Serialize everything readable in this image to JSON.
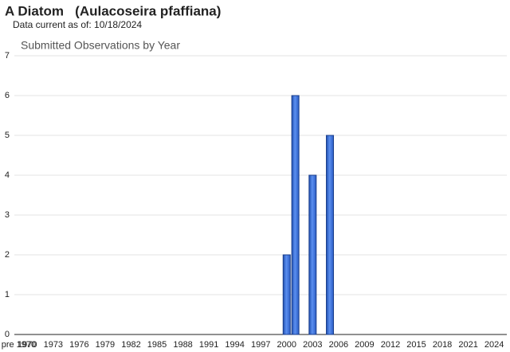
{
  "chart_data": {
    "type": "bar",
    "title": "A Diatom   (Aulacoseira pfaffiana)",
    "subtitle": "Data current as of: 10/18/2024",
    "chart_title": "Submitted Observations by Year",
    "categories": [
      "pre 1970",
      "1970",
      null,
      null,
      "1973",
      null,
      null,
      "1976",
      null,
      null,
      "1979",
      null,
      null,
      "1982",
      null,
      null,
      "1985",
      null,
      null,
      "1988",
      null,
      null,
      "1991",
      null,
      null,
      "1994",
      null,
      null,
      "1997",
      null,
      null,
      "2000",
      null,
      null,
      "2003",
      null,
      null,
      "2006",
      null,
      null,
      "2009",
      null,
      null,
      "2012",
      null,
      null,
      "2015",
      null,
      null,
      "2018",
      null,
      null,
      "2021",
      null,
      null,
      "2024"
    ],
    "values": [
      0,
      0,
      0,
      0,
      0,
      0,
      0,
      0,
      0,
      0,
      0,
      0,
      0,
      0,
      0,
      0,
      0,
      0,
      0,
      0,
      0,
      0,
      0,
      0,
      0,
      0,
      0,
      0,
      0,
      0,
      0,
      2,
      6,
      0,
      4,
      0,
      5,
      0,
      0,
      0,
      0,
      0,
      0,
      0,
      0,
      0,
      0,
      0,
      0,
      0,
      0,
      0,
      0,
      0,
      0,
      0
    ],
    "color": "#3a6fd8",
    "ylim": [
      0,
      7
    ],
    "yticks": [
      0,
      1,
      2,
      3,
      4,
      5,
      6,
      7
    ],
    "grid": true
  }
}
